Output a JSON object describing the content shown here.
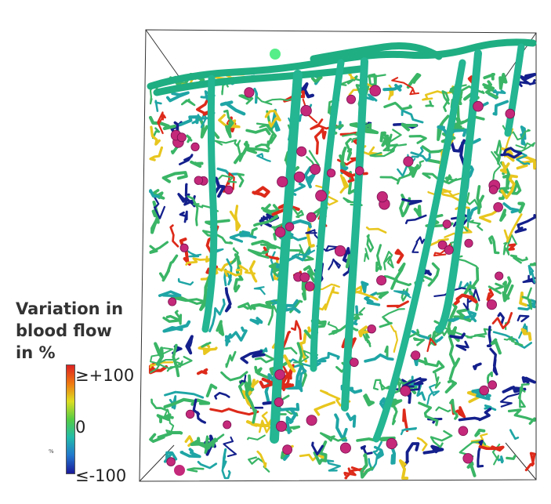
{
  "legend": {
    "title_lines": [
      "Variation in",
      "blood flow",
      "in %"
    ],
    "colorbar_stops": [
      "#dd2222",
      "#ee7711",
      "#dddd22",
      "#55cc44",
      "#22bbaa",
      "#2277cc",
      "#1a1a99"
    ],
    "tick_max": "≥+100",
    "tick_mid": "0",
    "tick_min": "≤-100",
    "unit_mark": "%"
  },
  "render": {
    "vessel_colors": {
      "high": "#dd2a1a",
      "mid_high": "#e8c61e",
      "neutral": "#3ab566",
      "mid_low": "#1fa5a5",
      "low": "#14208c"
    },
    "marker_color": "#c4297a",
    "surface_marker_color": "#55ee88",
    "box_edge_color": "#333333"
  }
}
